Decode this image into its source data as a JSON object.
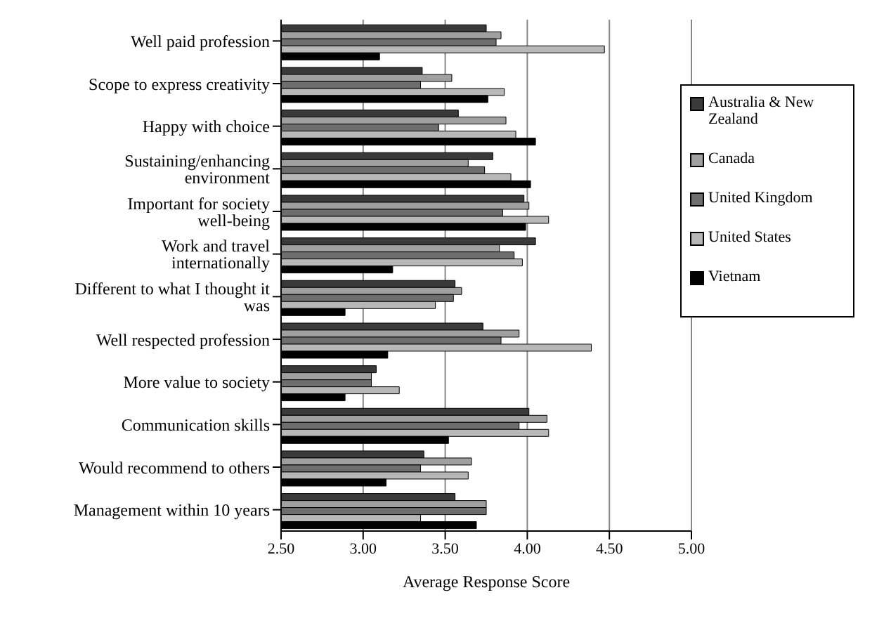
{
  "chart_data": {
    "type": "bar",
    "orientation": "horizontal",
    "xlabel": "Average Response Score",
    "categories": [
      "Well paid profession",
      "Scope to express creativity",
      "Happy with choice",
      "Sustaining/enhancing environment",
      "Important for society well-being",
      "Work and travel internationally",
      "Different to what I thought it was",
      "Well respected profession",
      "More value to society",
      "Communication skills",
      "Would recommend to others",
      "Management within 10 years"
    ],
    "series": [
      {
        "name": "Australia & New Zealand",
        "color": "#3a3a3a",
        "values": [
          3.75,
          3.36,
          3.58,
          3.79,
          3.98,
          4.05,
          3.56,
          3.73,
          3.08,
          4.01,
          3.37,
          3.56
        ]
      },
      {
        "name": "Canada",
        "color": "#a0a0a0",
        "values": [
          3.84,
          3.54,
          3.87,
          3.64,
          4.01,
          3.83,
          3.6,
          3.95,
          3.05,
          4.12,
          3.66,
          3.75
        ]
      },
      {
        "name": "United Kingdom",
        "color": "#6e6e6e",
        "values": [
          3.81,
          3.35,
          3.46,
          3.74,
          3.85,
          3.92,
          3.55,
          3.84,
          3.05,
          3.95,
          3.35,
          3.75
        ]
      },
      {
        "name": "United States",
        "color": "#b8b8b8",
        "values": [
          4.47,
          3.86,
          3.93,
          3.9,
          4.13,
          3.97,
          3.44,
          4.39,
          3.22,
          4.13,
          3.64,
          3.35
        ]
      },
      {
        "name": "Vietnam",
        "color": "#000000",
        "values": [
          3.1,
          3.76,
          4.05,
          4.02,
          3.99,
          3.18,
          2.89,
          3.15,
          2.89,
          3.52,
          3.14,
          3.69
        ]
      }
    ],
    "xlim": [
      2.5,
      5
    ],
    "xticks": [
      {
        "value": 2.5,
        "label": "2.50"
      },
      {
        "value": 3,
        "label": "3.00"
      },
      {
        "value": 3.5,
        "label": "3.50"
      },
      {
        "value": 4,
        "label": "4.00"
      },
      {
        "value": 4.5,
        "label": "4.50"
      },
      {
        "value": 5,
        "label": "5.00"
      }
    ],
    "grid": "x",
    "legend": "top right"
  }
}
